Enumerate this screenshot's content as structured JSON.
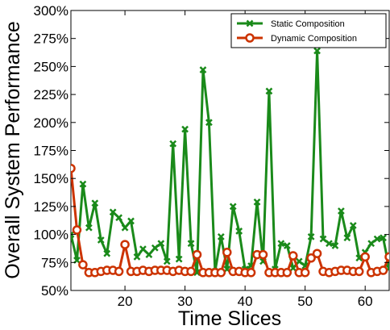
{
  "chart_data": {
    "type": "line",
    "title": "",
    "xlabel": "Time Slices",
    "ylabel": "Overall System Performance",
    "xlim": [
      11,
      64
    ],
    "ylim": [
      50,
      300
    ],
    "x_ticks": [
      20,
      30,
      40,
      50,
      60
    ],
    "y_ticks": [
      50,
      75,
      100,
      125,
      150,
      175,
      200,
      225,
      250,
      275,
      300
    ],
    "y_tick_labels": [
      "50%",
      "75%",
      "100%",
      "125%",
      "150%",
      "175%",
      "200%",
      "225%",
      "250%",
      "275%",
      "300%"
    ],
    "grid": false,
    "legend_position": "top-right",
    "x": [
      11,
      12,
      13,
      14,
      15,
      16,
      17,
      18,
      19,
      20,
      21,
      22,
      23,
      24,
      25,
      26,
      27,
      28,
      29,
      30,
      31,
      32,
      33,
      34,
      35,
      36,
      37,
      38,
      39,
      40,
      41,
      42,
      43,
      44,
      45,
      46,
      47,
      48,
      49,
      50,
      51,
      52,
      53,
      54,
      55,
      56,
      57,
      58,
      59,
      60,
      61,
      62,
      63,
      64
    ],
    "series": [
      {
        "name": "Static Composition",
        "color": "#1a8a1a",
        "marker": "x",
        "values": [
          100,
          77,
          145,
          106,
          128,
          95,
          83,
          120,
          115,
          106,
          112,
          80,
          87,
          82,
          88,
          92,
          76,
          181,
          78,
          194,
          92,
          66,
          247,
          200,
          67,
          98,
          69,
          125,
          103,
          69,
          72,
          129,
          76,
          228,
          69,
          92,
          90,
          70,
          76,
          72,
          98,
          264,
          96,
          92,
          90,
          121,
          97,
          108,
          79,
          84,
          92,
          96,
          97,
          70
        ]
      },
      {
        "name": "Dynamic Composition",
        "color": "#cc3300",
        "marker": "o",
        "values": [
          159,
          104,
          73,
          66,
          66,
          67,
          68,
          68,
          67,
          91,
          67,
          67,
          68,
          67,
          68,
          68,
          68,
          67,
          68,
          67,
          67,
          82,
          66,
          66,
          66,
          66,
          84,
          67,
          67,
          66,
          66,
          82,
          82,
          66,
          66,
          66,
          66,
          81,
          66,
          66,
          79,
          83,
          67,
          66,
          67,
          68,
          68,
          67,
          67,
          80,
          66,
          67,
          68,
          80
        ]
      }
    ]
  }
}
